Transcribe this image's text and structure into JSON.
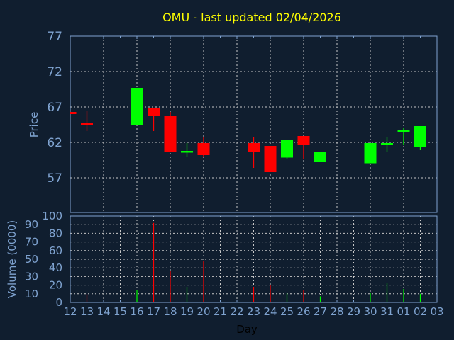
{
  "chart_data": [
    {
      "type": "candlestick",
      "title": "OMU - last updated 02/04/2026",
      "ylabel": "Price",
      "ylim": [
        52.1,
        77
      ],
      "yticks": [
        77,
        72,
        67,
        62,
        57
      ],
      "grid": true,
      "colors": {
        "up": "#00ff00",
        "down": "#ff0000"
      },
      "categories": [
        "12",
        "13",
        "14",
        "15",
        "16",
        "17",
        "18",
        "19",
        "20",
        "21",
        "22",
        "23",
        "24",
        "25",
        "26",
        "27",
        "28",
        "29",
        "30",
        "31",
        "01",
        "02",
        "03"
      ],
      "candles": [
        {
          "day": "12",
          "open": 66.3,
          "high": 66.3,
          "low": 66.0,
          "close": 66.0
        },
        {
          "day": "13",
          "open": 64.7,
          "high": 66.5,
          "low": 63.6,
          "close": 64.5
        },
        {
          "day": "16",
          "open": 64.4,
          "high": 69.7,
          "low": 64.4,
          "close": 69.7
        },
        {
          "day": "17",
          "open": 66.9,
          "high": 66.9,
          "low": 63.6,
          "close": 65.7
        },
        {
          "day": "18",
          "open": 65.7,
          "high": 66.3,
          "low": 60.6,
          "close": 60.6
        },
        {
          "day": "19",
          "open": 60.7,
          "high": 61.9,
          "low": 59.9,
          "close": 60.8
        },
        {
          "day": "20",
          "open": 61.9,
          "high": 62.7,
          "low": 59.9,
          "close": 60.2
        },
        {
          "day": "23",
          "open": 61.9,
          "high": 62.7,
          "low": 58.4,
          "close": 60.6
        },
        {
          "day": "24",
          "open": 61.5,
          "high": 61.5,
          "low": 57.8,
          "close": 57.8
        },
        {
          "day": "25",
          "open": 59.85,
          "high": 62.3,
          "low": 59.7,
          "close": 62.3
        },
        {
          "day": "26",
          "open": 62.9,
          "high": 62.9,
          "low": 59.65,
          "close": 61.6
        },
        {
          "day": "27",
          "open": 59.2,
          "high": 60.7,
          "low": 59.2,
          "close": 60.7
        },
        {
          "day": "30",
          "open": 59.05,
          "high": 61.9,
          "low": 59.05,
          "close": 61.9
        },
        {
          "day": "31",
          "open": 61.6,
          "high": 62.7,
          "low": 60.6,
          "close": 61.9
        },
        {
          "day": "01",
          "open": 63.5,
          "high": 64.0,
          "low": 61.6,
          "close": 63.7
        },
        {
          "day": "02",
          "open": 61.4,
          "high": 64.3,
          "low": 60.9,
          "close": 64.3
        }
      ]
    },
    {
      "type": "bar",
      "ylabel": "Volume (0000)",
      "xlabel": "Day",
      "ylim": [
        0,
        100
      ],
      "yticks": [
        0,
        10,
        20,
        30,
        40,
        50,
        60,
        70,
        80,
        90,
        100
      ],
      "grid": true,
      "categories": [
        "12",
        "13",
        "14",
        "15",
        "16",
        "17",
        "18",
        "19",
        "20",
        "21",
        "22",
        "23",
        "24",
        "25",
        "26",
        "27",
        "28",
        "29",
        "30",
        "31",
        "01",
        "02",
        "03"
      ],
      "bars": [
        {
          "day": "13",
          "value": 9.4,
          "dir": "down"
        },
        {
          "day": "16",
          "value": 14,
          "dir": "up"
        },
        {
          "day": "17",
          "value": 92,
          "dir": "down"
        },
        {
          "day": "18",
          "value": 36.6,
          "dir": "down"
        },
        {
          "day": "19",
          "value": 18,
          "dir": "up"
        },
        {
          "day": "20",
          "value": 48,
          "dir": "down"
        },
        {
          "day": "23",
          "value": 18,
          "dir": "down"
        },
        {
          "day": "24",
          "value": 19.6,
          "dir": "down"
        },
        {
          "day": "25",
          "value": 10.5,
          "dir": "up"
        },
        {
          "day": "26",
          "value": 14,
          "dir": "down"
        },
        {
          "day": "27",
          "value": 7,
          "dir": "up"
        },
        {
          "day": "30",
          "value": 11,
          "dir": "up"
        },
        {
          "day": "31",
          "value": 23,
          "dir": "up"
        },
        {
          "day": "01",
          "value": 15.6,
          "dir": "up"
        },
        {
          "day": "02",
          "value": 10,
          "dir": "up"
        }
      ]
    }
  ],
  "colors": {
    "background": "#101e2f",
    "axis": "#7fa3d0",
    "grid": "#c8c8c8",
    "title": "#ffff00",
    "xlabel": "#000000"
  }
}
